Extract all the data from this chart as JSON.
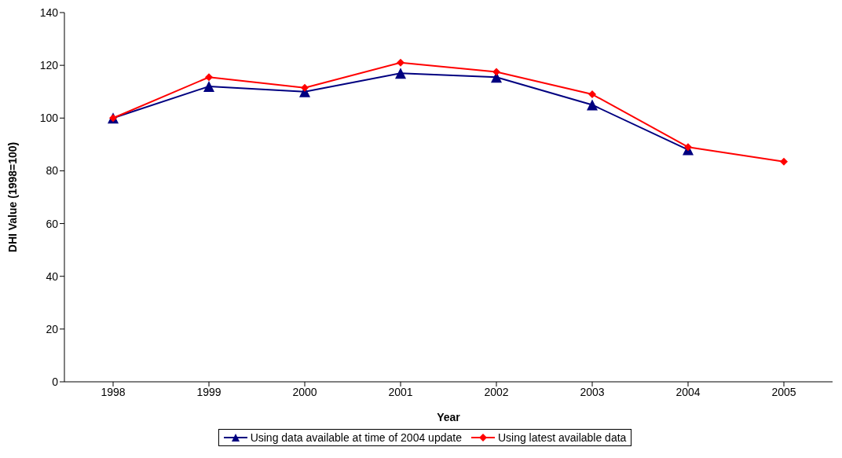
{
  "chart_data": {
    "type": "line",
    "xlabel": "Year",
    "ylabel": "DHI Value (1998=100)",
    "categories": [
      "1998",
      "1999",
      "2000",
      "2001",
      "2002",
      "2003",
      "2004",
      "2005"
    ],
    "series": [
      {
        "name": "Using data available at time of 2004 update",
        "color": "#000080",
        "marker": "triangle",
        "values": [
          100,
          112,
          110,
          117,
          115.5,
          105,
          88,
          null
        ]
      },
      {
        "name": "Using latest available data",
        "color": "#ff0000",
        "marker": "diamond",
        "values": [
          100,
          115.5,
          111.5,
          121,
          117.5,
          109,
          89,
          83.5
        ]
      }
    ],
    "ylim": [
      0,
      140
    ],
    "yticks": [
      0,
      20,
      40,
      60,
      80,
      100,
      120,
      140
    ],
    "grid": false,
    "legend": "bottom",
    "line_style": "solid"
  }
}
